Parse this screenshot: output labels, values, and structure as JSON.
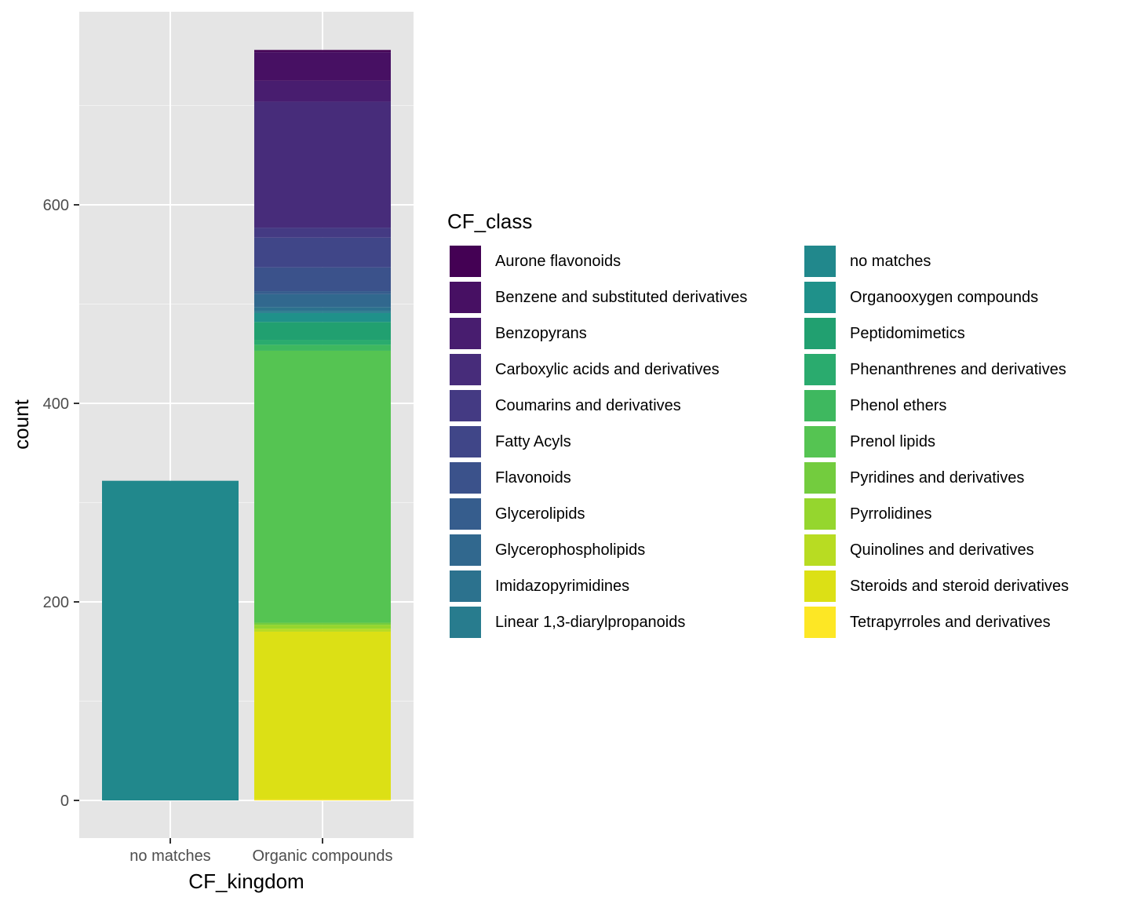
{
  "chart_data": {
    "type": "bar",
    "stacked": true,
    "xlabel": "CF_kingdom",
    "ylabel": "count",
    "categories": [
      "no matches",
      "Organic compounds"
    ],
    "ylim": [
      0,
      800
    ],
    "yticks": [
      0,
      200,
      400,
      600
    ],
    "grid": true,
    "legend_title": "CF_class",
    "legend_position": "right",
    "series": [
      {
        "name": "Aurone flavonoids",
        "color": "#440154",
        "values": [
          0,
          2
        ]
      },
      {
        "name": "Benzene and substituted derivatives",
        "color": "#471063",
        "values": [
          0,
          29
        ]
      },
      {
        "name": "Benzopyrans",
        "color": "#481d6f",
        "values": [
          0,
          21
        ]
      },
      {
        "name": "Carboxylic acids and derivatives",
        "color": "#472c7a",
        "values": [
          0,
          127
        ]
      },
      {
        "name": "Coumarins and derivatives",
        "color": "#443a83",
        "values": [
          0,
          10
        ]
      },
      {
        "name": "Fatty Acyls",
        "color": "#404688",
        "values": [
          0,
          30
        ]
      },
      {
        "name": "Flavonoids",
        "color": "#3b528b",
        "values": [
          0,
          24
        ]
      },
      {
        "name": "Glycerolipids",
        "color": "#365d8d",
        "values": [
          0,
          3
        ]
      },
      {
        "name": "Glycerophospholipids",
        "color": "#31688e",
        "values": [
          0,
          13
        ]
      },
      {
        "name": "Imidazopyrimidines",
        "color": "#2c728e",
        "values": [
          0,
          4
        ]
      },
      {
        "name": "Linear 1,3-diarylpropanoids",
        "color": "#287c8e",
        "values": [
          0,
          2
        ]
      },
      {
        "name": "no matches",
        "color": "#21888c",
        "values": [
          322,
          0
        ]
      },
      {
        "name": "Organooxygen compounds",
        "color": "#1f918a",
        "values": [
          0,
          9
        ]
      },
      {
        "name": "Peptidomimetics",
        "color": "#21a070",
        "values": [
          0,
          18
        ]
      },
      {
        "name": "Phenanthrenes and derivatives",
        "color": "#2aab6e",
        "values": [
          0,
          5
        ]
      },
      {
        "name": "Phenol ethers",
        "color": "#3eb85f",
        "values": [
          0,
          6
        ]
      },
      {
        "name": "Prenol lipids",
        "color": "#55c452",
        "values": [
          0,
          274
        ]
      },
      {
        "name": "Pyridines and derivatives",
        "color": "#73cc3e",
        "values": [
          0,
          2
        ]
      },
      {
        "name": "Pyrrolidines",
        "color": "#95d62e",
        "values": [
          0,
          4
        ]
      },
      {
        "name": "Quinolines and derivatives",
        "color": "#b8dc22",
        "values": [
          0,
          3
        ]
      },
      {
        "name": "Steroids and steroid derivatives",
        "color": "#dce015",
        "values": [
          0,
          169
        ]
      },
      {
        "name": "Tetrapyrroles and derivatives",
        "color": "#fde725",
        "values": [
          0,
          1
        ]
      }
    ]
  }
}
